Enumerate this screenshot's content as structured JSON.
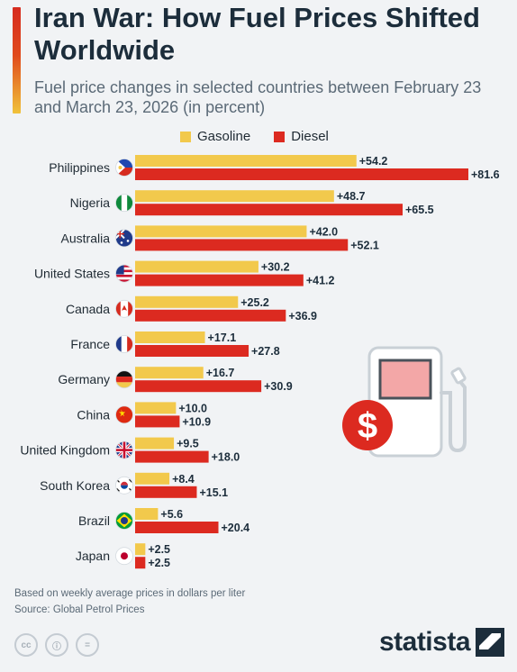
{
  "header": {
    "title": "Iran War: How Fuel Prices Shifted Worldwide",
    "subtitle": "Fuel price changes in selected countries between February 23 and March 23, 2026 (in percent)"
  },
  "legend": {
    "gasoline": "Gasoline",
    "diesel": "Diesel"
  },
  "colors": {
    "gasoline": "#f2c94c",
    "diesel": "#dc2a20",
    "title": "#1c2d3b",
    "accent_top": "#d62b1f",
    "accent_bottom": "#f0c23a"
  },
  "chart_data": {
    "type": "bar",
    "orientation": "horizontal",
    "title": "Iran War: How Fuel Prices Shifted Worldwide",
    "subtitle": "Fuel price changes in selected countries between February 23 and March 23, 2026 (in percent)",
    "categories": [
      "Philippines",
      "Nigeria",
      "Australia",
      "United States",
      "Canada",
      "France",
      "Germany",
      "China",
      "United Kingdom",
      "South Korea",
      "Brazil",
      "Japan"
    ],
    "series": [
      {
        "name": "Gasoline",
        "values": [
          54.2,
          48.7,
          42.0,
          30.2,
          25.2,
          17.1,
          16.7,
          10.0,
          9.5,
          8.4,
          5.6,
          2.5
        ]
      },
      {
        "name": "Diesel",
        "values": [
          81.6,
          65.5,
          52.1,
          41.2,
          36.9,
          27.8,
          30.9,
          10.9,
          18.0,
          15.1,
          20.4,
          2.5
        ]
      }
    ],
    "data_labels": {
      "Gasoline": [
        "+54.2",
        "+48.7",
        "+42.0",
        "+30.2",
        "+25.2",
        "+17.1",
        "+16.7",
        "+10.0",
        "+9.5",
        "+8.4",
        "+5.6",
        "+2.5"
      ],
      "Diesel": [
        "+81.6",
        "+65.5",
        "+52.1",
        "+41.2",
        "+36.9",
        "+27.8",
        "+30.9",
        "+10.9",
        "+18.0",
        "+15.1",
        "+20.4",
        "+2.5"
      ]
    },
    "flags": [
      "flag-philippines-icon",
      "flag-nigeria-icon",
      "flag-australia-icon",
      "flag-united-states-icon",
      "flag-canada-icon",
      "flag-france-icon",
      "flag-germany-icon",
      "flag-china-icon",
      "flag-united-kingdom-icon",
      "flag-south-korea-icon",
      "flag-brazil-icon",
      "flag-japan-icon"
    ],
    "xlim": [
      0,
      81.6
    ],
    "grid": false,
    "legend_position": "top"
  },
  "footer": {
    "note": "Based on weekly average prices in dollars per liter",
    "source": "Source: Global Petrol Prices",
    "brand": "statista",
    "cc_icons": [
      "cc",
      "ⓘ",
      "="
    ]
  }
}
